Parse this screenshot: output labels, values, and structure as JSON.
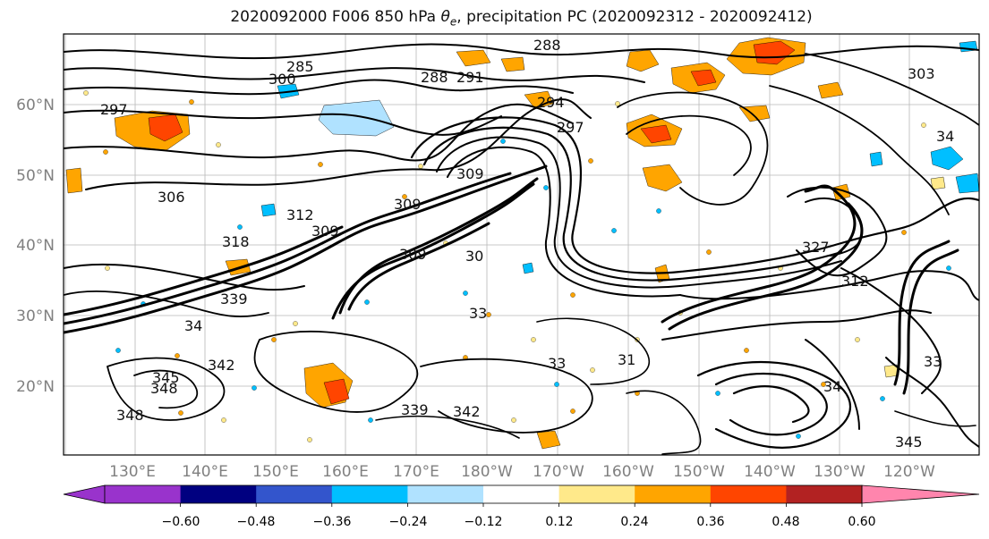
{
  "title_parts": {
    "prefix": "2020092000 F006 850 hPa ",
    "symbol": "θ",
    "subscript": "e",
    "suffix": ", precipitation PC (2020092312 - 2020092412)"
  },
  "axes": {
    "lat_labels": [
      "60°N",
      "50°N",
      "40°N",
      "30°N",
      "20°N"
    ],
    "lon_labels": [
      "130°E",
      "140°E",
      "150°E",
      "160°E",
      "170°E",
      "180°W",
      "170°W",
      "160°W",
      "150°W",
      "140°W",
      "130°W",
      "120°W"
    ]
  },
  "colorbar": {
    "colors": [
      "#9933cc",
      "#000080",
      "#3355cc",
      "#00bfff",
      "#b0e2ff",
      "#ffffff",
      "#ffe98a",
      "#ffa500",
      "#ff4500",
      "#b22222",
      "#ff85ad"
    ],
    "tick_labels": [
      "−0.60",
      "−0.48",
      "−0.36",
      "−0.24",
      "−0.12",
      "0.12",
      "0.24",
      "0.36",
      "0.48",
      "0.60"
    ]
  },
  "contour_labels": [
    {
      "text": "288"
    },
    {
      "text": "285"
    },
    {
      "text": "300"
    },
    {
      "text": "288"
    },
    {
      "text": "291"
    },
    {
      "text": "303"
    },
    {
      "text": "297"
    },
    {
      "text": "294"
    },
    {
      "text": "297"
    },
    {
      "text": "309"
    },
    {
      "text": "306"
    },
    {
      "text": "312"
    },
    {
      "text": "309"
    },
    {
      "text": "309"
    },
    {
      "text": "318"
    },
    {
      "text": "309"
    },
    {
      "text": "30"
    },
    {
      "text": "339"
    },
    {
      "text": "34"
    },
    {
      "text": "342"
    },
    {
      "text": "345"
    },
    {
      "text": "348"
    },
    {
      "text": "348"
    },
    {
      "text": "339"
    },
    {
      "text": "342"
    },
    {
      "text": "33"
    },
    {
      "text": "312"
    },
    {
      "text": "327"
    },
    {
      "text": "33"
    },
    {
      "text": "31"
    },
    {
      "text": "34"
    },
    {
      "text": "345"
    },
    {
      "text": "33"
    },
    {
      "text": "34"
    }
  ]
}
